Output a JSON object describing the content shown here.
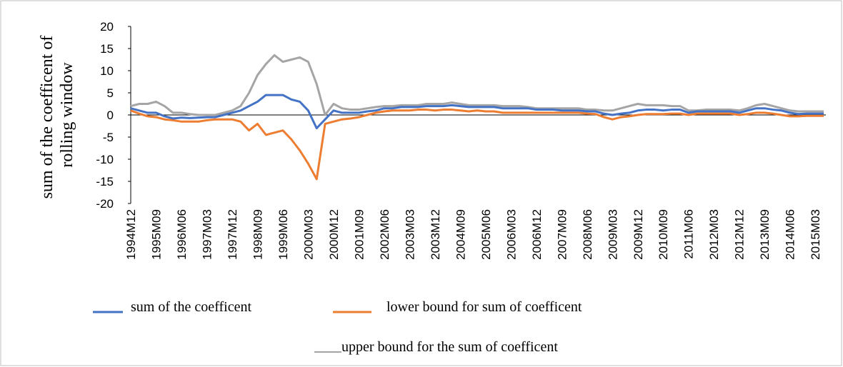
{
  "chart_data": {
    "type": "line",
    "ylabel": [
      "sum of the coefficent of",
      "rolling window"
    ],
    "categories": [
      "1994M12",
      null,
      null,
      "1995M09",
      null,
      null,
      "1996M06",
      null,
      null,
      "1997M03",
      null,
      null,
      "1997M12",
      null,
      null,
      "1998M09",
      null,
      null,
      "1999M06",
      null,
      null,
      "2000M03",
      null,
      null,
      "2000M12",
      null,
      null,
      "2001M09",
      null,
      null,
      "2002M06",
      null,
      null,
      "2003M03",
      null,
      null,
      "2003M12",
      null,
      null,
      "2004M09",
      null,
      null,
      "2005M06",
      null,
      null,
      "2006M03",
      null,
      null,
      "2006M12",
      null,
      null,
      "2007M09",
      null,
      null,
      "2008M06",
      null,
      null,
      "2009M03",
      null,
      null,
      "2009M12",
      null,
      null,
      "2010M09",
      null,
      null,
      "2011M06",
      null,
      null,
      "2012M03",
      null,
      null,
      "2012M12",
      null,
      null,
      "2013M09",
      null,
      null,
      "2014M06",
      null,
      null,
      "2015M03",
      null
    ],
    "series": [
      {
        "name": "sum of the coefficent",
        "color": "#4472c4",
        "values": [
          1.5,
          1,
          0.5,
          0.5,
          -0.3,
          -0.8,
          -0.6,
          -0.7,
          -0.6,
          -0.5,
          -0.5,
          0,
          0.5,
          1,
          2,
          3,
          4.5,
          4.5,
          4.5,
          3.5,
          3,
          1,
          -3,
          -1,
          1,
          0.5,
          0.5,
          0.5,
          0.8,
          1,
          1.5,
          1.5,
          1.8,
          1.8,
          1.8,
          2,
          2,
          2,
          2.2,
          2,
          1.8,
          1.8,
          1.8,
          1.8,
          1.5,
          1.5,
          1.5,
          1.5,
          1.2,
          1.2,
          1.2,
          1,
          1,
          1,
          0.8,
          0.8,
          0.3,
          0,
          0.3,
          0.5,
          1,
          1.2,
          1.2,
          1,
          1.2,
          1.2,
          0.5,
          0.8,
          0.8,
          0.8,
          0.8,
          0.8,
          0.5,
          1,
          1.5,
          1.5,
          1.2,
          1,
          0.5,
          0.2,
          0.3,
          0.3,
          0.3
        ]
      },
      {
        "name": "lower bound for sum of coefficent",
        "color": "#ed7d31",
        "values": [
          1,
          0.3,
          -0.3,
          -0.5,
          -1,
          -1.2,
          -1.5,
          -1.5,
          -1.5,
          -1.2,
          -1,
          -1,
          -1,
          -1.5,
          -3.5,
          -2,
          -4.5,
          -4,
          -3.5,
          -5.5,
          -8,
          -11,
          -14.5,
          -2,
          -1.5,
          -1,
          -0.8,
          -0.5,
          0,
          0.5,
          0.8,
          1,
          1,
          1,
          1.2,
          1.2,
          1,
          1.2,
          1.2,
          1,
          0.8,
          1,
          0.8,
          0.8,
          0.5,
          0.5,
          0.5,
          0.5,
          0.5,
          0.5,
          0.5,
          0.5,
          0.5,
          0.5,
          0.3,
          0.2,
          -0.5,
          -1,
          -0.5,
          -0.3,
          0,
          0.2,
          0.2,
          0.2,
          0.3,
          0.3,
          0,
          0.3,
          0.3,
          0.3,
          0.3,
          0.3,
          0,
          0.2,
          0.5,
          0.5,
          0.3,
          0,
          -0.3,
          -0.3,
          -0.2,
          -0.2,
          -0.2
        ]
      },
      {
        "name": "upper  bound for the sum of coefficent",
        "color": "#a5a5a5",
        "values": [
          2,
          2.5,
          2.5,
          3,
          2,
          0.5,
          0.5,
          0.2,
          0,
          0,
          0,
          0.5,
          1,
          2,
          5,
          9,
          11.5,
          13.5,
          12,
          12.5,
          13,
          12,
          7,
          0,
          2.5,
          1.5,
          1.2,
          1.2,
          1.5,
          1.8,
          2,
          2,
          2.2,
          2.2,
          2.2,
          2.5,
          2.5,
          2.5,
          2.8,
          2.5,
          2.2,
          2.2,
          2.2,
          2.2,
          2,
          2,
          2,
          1.8,
          1.5,
          1.5,
          1.5,
          1.5,
          1.5,
          1.5,
          1.2,
          1.2,
          1,
          1,
          1.5,
          2,
          2.5,
          2.2,
          2.2,
          2.2,
          2,
          2,
          1,
          1,
          1.2,
          1.2,
          1.2,
          1.2,
          1,
          1.5,
          2.2,
          2.5,
          2,
          1.5,
          1,
          0.8,
          0.8,
          0.8,
          0.8
        ]
      }
    ],
    "ylim": [
      -20,
      20
    ],
    "yticks": [
      -20,
      -15,
      -10,
      -5,
      0,
      5,
      10,
      15,
      20
    ],
    "zero_line": true,
    "legend": "bottom"
  }
}
